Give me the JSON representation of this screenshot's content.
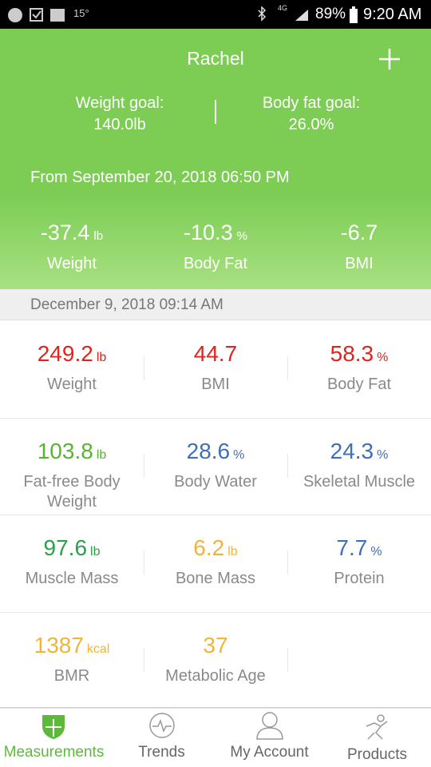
{
  "status_bar": {
    "temperature": "15°",
    "network": "4G",
    "battery": "89%",
    "time": "9:20 AM"
  },
  "header": {
    "name": "Rachel",
    "weight_goal_label": "Weight goal:",
    "weight_goal": "140.0lb",
    "body_fat_goal_label": "Body fat goal:",
    "body_fat_goal": "26.0%",
    "since": "From September 20, 2018 06:50 PM",
    "changes": [
      {
        "value": "-37.4",
        "unit": "lb",
        "label": "Weight"
      },
      {
        "value": "-10.3",
        "unit": "%",
        "label": "Body Fat"
      },
      {
        "value": "-6.7",
        "label": "BMI"
      }
    ]
  },
  "date": "December 9, 2018 09:14 AM",
  "metrics": [
    [
      {
        "value": "249.2",
        "unit": "lb",
        "label": "Weight",
        "color": "#e2231e"
      },
      {
        "value": "44.7",
        "label": "BMI",
        "color": "#e2231e"
      },
      {
        "value": "58.3",
        "unit": "%",
        "label": "Body Fat",
        "color": "#e2231e"
      }
    ],
    [
      {
        "value": "103.8",
        "unit": "lb",
        "label": "Fat-free Body Weight",
        "color": "#58b431"
      },
      {
        "value": "28.6",
        "unit": "%",
        "label": "Body Water",
        "color": "#3f6fb4"
      },
      {
        "value": "24.3",
        "unit": "%",
        "label": "Skeletal Muscle",
        "color": "#3f6fb4"
      }
    ],
    [
      {
        "value": "97.6",
        "unit": "lb",
        "label": "Muscle Mass",
        "color": "#2aa04a"
      },
      {
        "value": "6.2",
        "unit": "lb",
        "label": "Bone Mass",
        "color": "#f0b43a"
      },
      {
        "value": "7.7",
        "unit": "%",
        "label": "Protein",
        "color": "#3f6fb4"
      }
    ],
    [
      {
        "value": "1387",
        "unit": "kcal",
        "label": "BMR",
        "color": "#f0b43a"
      },
      {
        "value": "37",
        "label": "Metabolic Age",
        "color": "#f0b43a"
      }
    ]
  ],
  "nav": [
    "Measurements",
    "Trends",
    "My Account",
    "Products"
  ]
}
